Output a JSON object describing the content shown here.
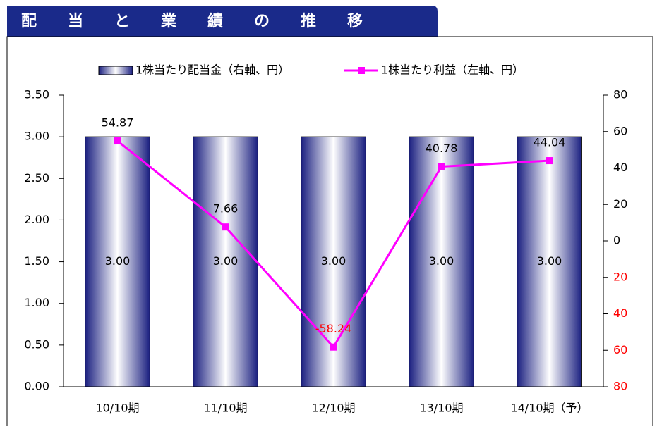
{
  "chart_data": {
    "type": "bar_line",
    "title": "配当と業績の推移",
    "categories": [
      "10/10期",
      "11/10期",
      "12/10期",
      "13/10期",
      "14/10期（予）"
    ],
    "series": [
      {
        "name": "1株当たり配当金（右軸、円）",
        "type": "bar",
        "color": "#1a1f80",
        "axis": "y",
        "values": [
          3.0,
          3.0,
          3.0,
          3.0,
          3.0
        ],
        "value_labels": [
          "3.00",
          "3.00",
          "3.00",
          "3.00",
          "3.00"
        ]
      },
      {
        "name": "1株当たり利益（左軸、円）",
        "type": "line",
        "color": "#ff00ff",
        "axis": "y2",
        "values": [
          54.87,
          7.66,
          -58.24,
          40.78,
          44.04
        ]
      }
    ],
    "ylim": [
      0,
      3.5
    ],
    "yticks": [
      {
        "value": 0,
        "label": "0.00"
      },
      {
        "value": 0.5,
        "label": "0.50"
      },
      {
        "value": 1,
        "label": "1.00"
      },
      {
        "value": 1.5,
        "label": "1.50"
      },
      {
        "value": 2,
        "label": "2.00"
      },
      {
        "value": 2.5,
        "label": "2.50"
      },
      {
        "value": 3,
        "label": "3.00"
      },
      {
        "value": 3.5,
        "label": "3.50"
      }
    ],
    "y2lim": [
      -80,
      80
    ],
    "y2ticks": [
      {
        "value": -80,
        "label": "80"
      },
      {
        "value": -60,
        "label": "60"
      },
      {
        "value": -40,
        "label": "40"
      },
      {
        "value": -20,
        "label": "20"
      },
      0,
      20,
      40,
      60,
      80
    ],
    "negative_color": "#ff0000",
    "grid": false
  }
}
